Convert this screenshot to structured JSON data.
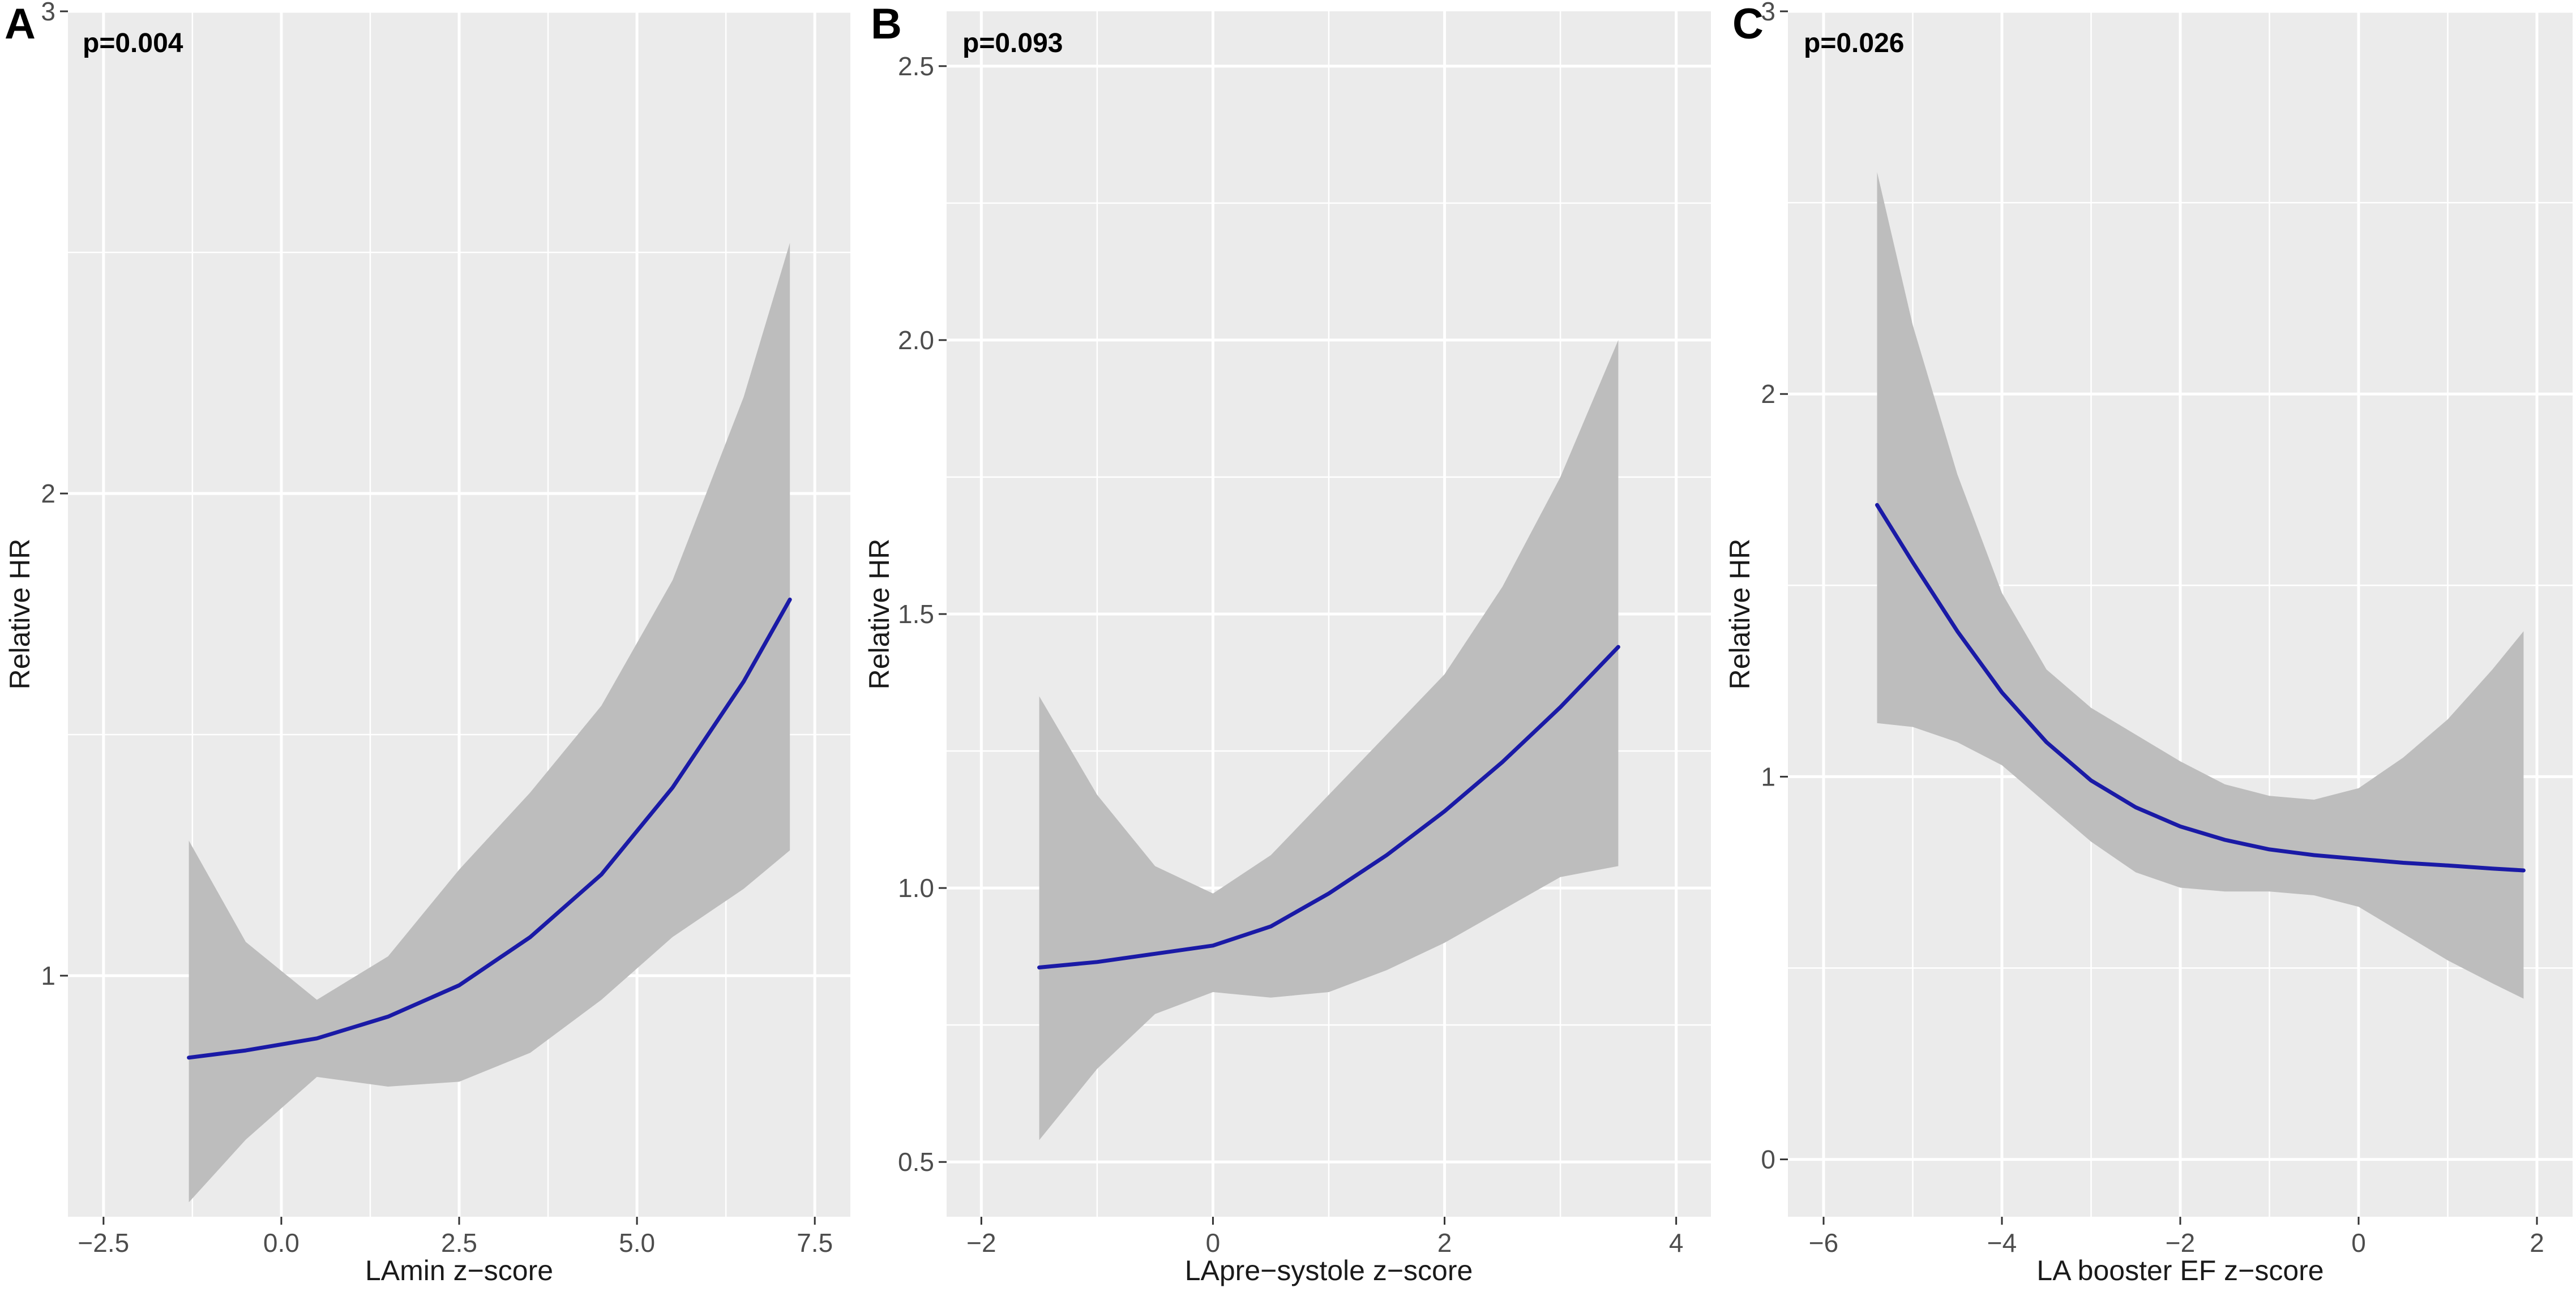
{
  "chart_data": [
    {
      "type": "line",
      "panel": "A",
      "annotation": "p=0.004",
      "xlabel": "LAmin z−score",
      "ylabel": "Relative HR",
      "xlim": [
        -3.0,
        8.0
      ],
      "ylim": [
        0.5,
        3.0
      ],
      "xticks": [
        -2.5,
        0.0,
        2.5,
        5.0,
        7.5
      ],
      "xtick_labels": [
        "−2.5",
        "0.0",
        "2.5",
        "5.0",
        "7.5"
      ],
      "yticks": [
        1,
        2,
        3
      ],
      "ytick_labels": [
        "1",
        "2",
        "3"
      ],
      "grid": true,
      "series": [
        {
          "name": "Relative HR",
          "color": "#1a1aa6",
          "x": [
            -1.3,
            -0.5,
            0.5,
            1.5,
            2.5,
            3.5,
            4.5,
            5.5,
            6.5,
            7.15
          ],
          "y": [
            0.83,
            0.845,
            0.87,
            0.915,
            0.98,
            1.08,
            1.21,
            1.39,
            1.61,
            1.78
          ],
          "lower": [
            0.53,
            0.66,
            0.79,
            0.77,
            0.78,
            0.84,
            0.95,
            1.08,
            1.18,
            1.26
          ],
          "upper": [
            1.28,
            1.07,
            0.95,
            1.04,
            1.22,
            1.38,
            1.56,
            1.82,
            2.2,
            2.52
          ]
        }
      ]
    },
    {
      "type": "line",
      "panel": "B",
      "annotation": "p=0.093",
      "xlabel": "LApre−systole z−score",
      "ylabel": "Relative HR",
      "xlim": [
        -2.3,
        4.3
      ],
      "ylim": [
        0.4,
        2.6
      ],
      "xticks": [
        -2,
        0,
        2,
        4
      ],
      "xtick_labels": [
        "−2",
        "0",
        "2",
        "4"
      ],
      "yticks": [
        0.5,
        1.0,
        1.5,
        2.0,
        2.5
      ],
      "ytick_labels": [
        "0.5",
        "1.0",
        "1.5",
        "2.0",
        "2.5"
      ],
      "grid": true,
      "series": [
        {
          "name": "Relative HR",
          "color": "#1a1aa6",
          "x": [
            -1.5,
            -1.0,
            -0.5,
            0.0,
            0.5,
            1.0,
            1.5,
            2.0,
            2.5,
            3.0,
            3.5
          ],
          "y": [
            0.855,
            0.865,
            0.88,
            0.895,
            0.93,
            0.99,
            1.06,
            1.14,
            1.23,
            1.33,
            1.44
          ],
          "lower": [
            0.54,
            0.67,
            0.77,
            0.81,
            0.8,
            0.81,
            0.85,
            0.9,
            0.96,
            1.02,
            1.04
          ],
          "upper": [
            1.35,
            1.17,
            1.04,
            0.99,
            1.06,
            1.17,
            1.28,
            1.39,
            1.55,
            1.75,
            2.0
          ]
        }
      ]
    },
    {
      "type": "line",
      "panel": "C",
      "annotation": "p=0.026",
      "xlabel": "LA booster EF z−score",
      "ylabel": "Relative HR",
      "xlim": [
        -6.4,
        2.4
      ],
      "ylim": [
        -0.15,
        3.0
      ],
      "xticks": [
        -6,
        -4,
        -2,
        0,
        2
      ],
      "xtick_labels": [
        "−6",
        "−4",
        "−2",
        "0",
        "2"
      ],
      "yticks": [
        0,
        1,
        2,
        3
      ],
      "ytick_labels": [
        "0",
        "1",
        "2",
        "3"
      ],
      "grid": true,
      "series": [
        {
          "name": "Relative HR",
          "color": "#1a1aa6",
          "x": [
            -5.4,
            -5.0,
            -4.5,
            -4.0,
            -3.5,
            -3.0,
            -2.5,
            -2.0,
            -1.5,
            -1.0,
            -0.5,
            0.0,
            0.5,
            1.0,
            1.5,
            1.85
          ],
          "y": [
            1.71,
            1.56,
            1.38,
            1.22,
            1.09,
            0.99,
            0.92,
            0.87,
            0.835,
            0.81,
            0.795,
            0.785,
            0.775,
            0.768,
            0.76,
            0.755
          ],
          "lower": [
            1.14,
            1.13,
            1.09,
            1.03,
            0.93,
            0.83,
            0.75,
            0.71,
            0.7,
            0.7,
            0.69,
            0.66,
            0.59,
            0.52,
            0.46,
            0.42
          ],
          "upper": [
            2.58,
            2.18,
            1.79,
            1.48,
            1.28,
            1.18,
            1.11,
            1.04,
            0.98,
            0.95,
            0.94,
            0.97,
            1.05,
            1.15,
            1.28,
            1.38
          ]
        }
      ]
    }
  ]
}
